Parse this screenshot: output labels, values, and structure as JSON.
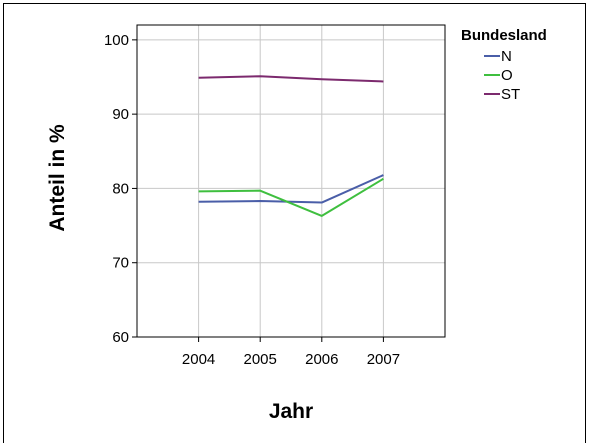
{
  "chart_data": {
    "type": "line",
    "xlabel": "Jahr",
    "ylabel": "Anteil in %",
    "x": [
      "2004",
      "2005",
      "2006",
      "2007"
    ],
    "ylim": [
      60,
      102
    ],
    "yticks": [
      60,
      70,
      80,
      90,
      100
    ],
    "grid": true,
    "legend": {
      "title": "Bundesland",
      "position": "top-right"
    },
    "series": [
      {
        "name": "N",
        "color": "#4a5ea8",
        "values": [
          78.2,
          78.3,
          78.1,
          81.8
        ]
      },
      {
        "name": "O",
        "color": "#3fbf3f",
        "values": [
          79.6,
          79.7,
          76.3,
          81.3
        ]
      },
      {
        "name": "ST",
        "color": "#7c2a6e",
        "values": [
          94.9,
          95.1,
          94.7,
          94.4
        ]
      }
    ]
  }
}
